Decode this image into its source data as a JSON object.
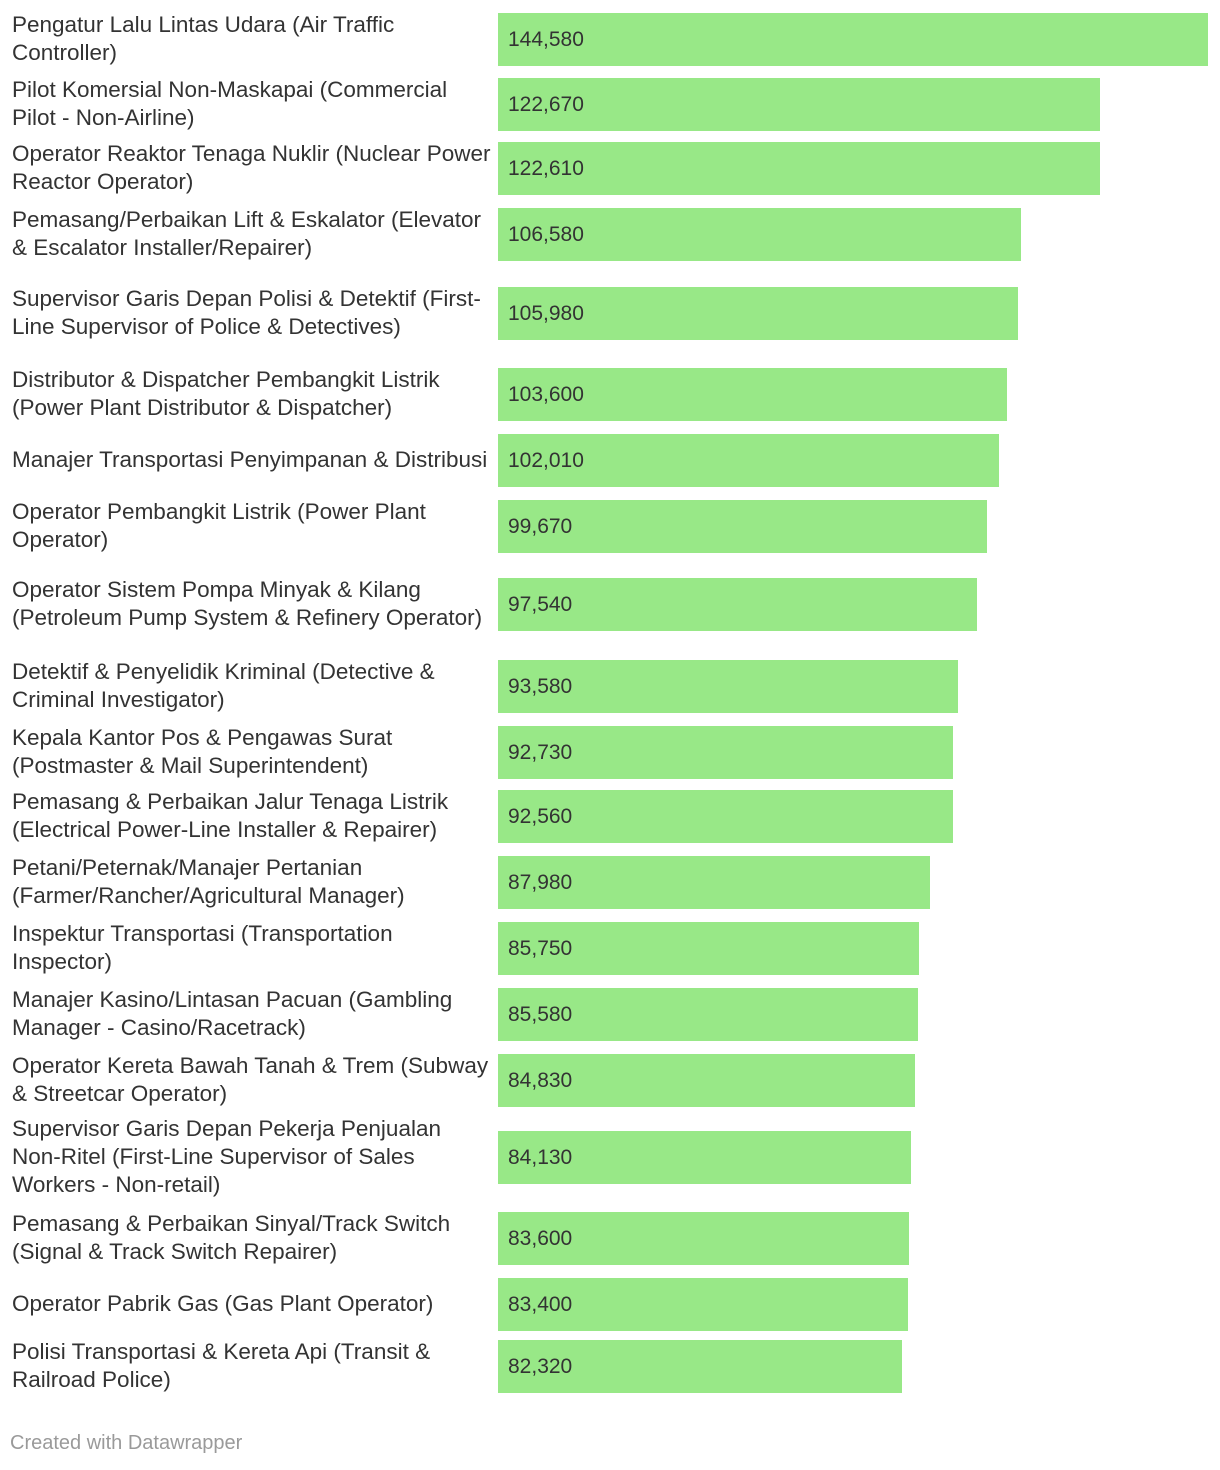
{
  "chart_data": {
    "type": "bar",
    "orientation": "horizontal",
    "colors": {
      "bar": "#98e887",
      "text": "#333333",
      "credit": "#9a9a9a"
    },
    "categories": [
      "Pengatur Lalu Lintas Udara (Air Traffic Controller)",
      "Pilot Komersial Non-Maskapai (Commercial Pilot - Non-Airline)",
      "Operator Reaktor Tenaga Nuklir (Nuclear Power Reactor Operator)",
      "Pemasang/Perbaikan Lift & Eskalator (Elevator & Escalator Installer/Repairer)",
      "Supervisor Garis Depan Polisi & Detektif (First-Line Supervisor of Police & Detectives)",
      "Distributor & Dispatcher Pembangkit Listrik (Power Plant Distributor & Dispatcher)",
      "Manajer Transportasi Penyimpanan & Distribusi",
      "Operator Pembangkit Listrik (Power Plant Operator)",
      "Operator Sistem Pompa Minyak & Kilang (Petroleum Pump System & Refinery Operator)",
      "Detektif & Penyelidik Kriminal (Detective & Criminal Investigator)",
      "Kepala Kantor Pos & Pengawas Surat (Postmaster & Mail Superintendent)",
      "Pemasang & Perbaikan Jalur Tenaga Listrik (Electrical Power-Line Installer & Repairer)",
      "Petani/Peternak/Manajer Pertanian (Farmer/Rancher/Agricultural Manager)",
      "Inspektur Transportasi (Transportation Inspector)",
      "Manajer Kasino/Lintasan Pacuan (Gambling Manager - Casino/Racetrack)",
      "Operator Kereta Bawah Tanah & Trem (Subway & Streetcar Operator)",
      "Supervisor Garis Depan Pekerja Penjualan Non-Ritel (First-Line Supervisor of Sales Workers - Non-retail)",
      "Pemasang & Perbaikan Sinyal/Track Switch (Signal & Track Switch Repairer)",
      "Operator Pabrik Gas (Gas Plant Operator)",
      "Polisi Transportasi & Kereta Api (Transit & Railroad Police)"
    ],
    "values": [
      144580,
      122670,
      122610,
      106580,
      105980,
      103600,
      102010,
      99670,
      97540,
      93580,
      92730,
      92560,
      87980,
      85750,
      85580,
      84830,
      84130,
      83600,
      83400,
      82320
    ],
    "value_labels": [
      "144,580",
      "122,670",
      "122,610",
      "106,580",
      "105,980",
      "103,600",
      "102,010",
      "99,670",
      "97,540",
      "93,580",
      "92,730",
      "92,560",
      "87,980",
      "85,750",
      "85,580",
      "84,830",
      "84,130",
      "83,600",
      "83,400",
      "82,320"
    ],
    "xlim": [
      0,
      144580
    ],
    "grid": false,
    "legend": "none"
  },
  "footer": {
    "credit": "Created with Datawrapper"
  }
}
